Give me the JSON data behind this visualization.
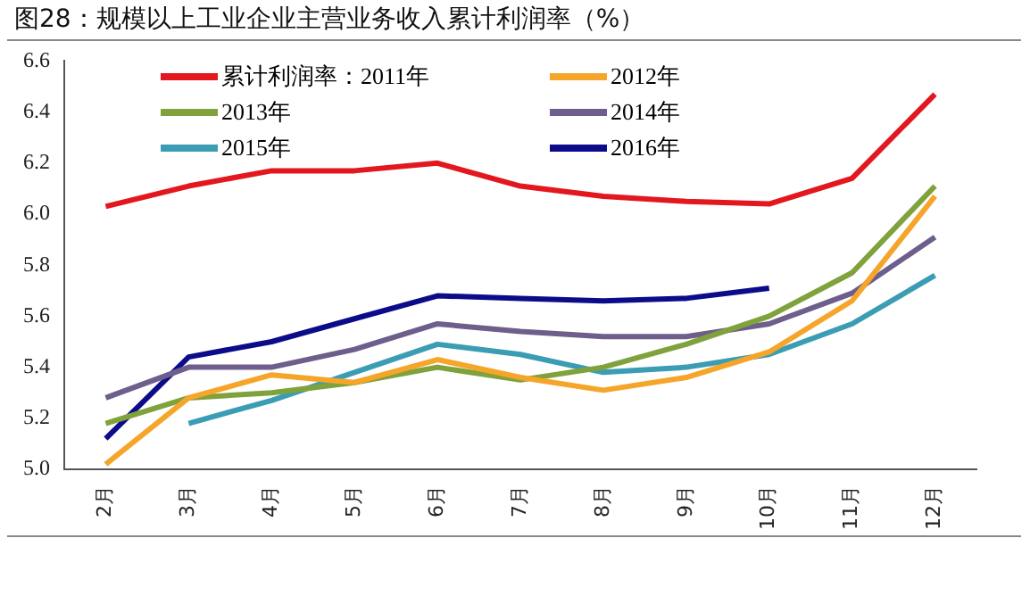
{
  "chart_data": {
    "type": "line",
    "title": "图28：规模以上工业企业主营业务收入累计利润率（%）",
    "categories": [
      "2月",
      "3月",
      "4月",
      "5月",
      "6月",
      "7月",
      "8月",
      "9月",
      "10月",
      "11月",
      "12月"
    ],
    "series": [
      {
        "name": "累计利润率：2011年",
        "color": "#e3171e",
        "values": [
          6.03,
          6.11,
          6.17,
          6.17,
          6.2,
          6.11,
          6.07,
          6.05,
          6.04,
          6.14,
          6.47
        ]
      },
      {
        "name": "2012年",
        "color": "#f5a52a",
        "values": [
          5.02,
          5.28,
          5.37,
          5.34,
          5.43,
          5.36,
          5.31,
          5.36,
          5.46,
          5.66,
          6.07
        ]
      },
      {
        "name": "2013年",
        "color": "#7fa23c",
        "values": [
          5.18,
          5.28,
          5.3,
          5.34,
          5.4,
          5.35,
          5.4,
          5.49,
          5.6,
          5.77,
          6.11
        ]
      },
      {
        "name": "2014年",
        "color": "#6e5e8c",
        "values": [
          5.28,
          5.4,
          5.4,
          5.47,
          5.57,
          5.54,
          5.52,
          5.52,
          5.57,
          5.69,
          5.91
        ]
      },
      {
        "name": "2015年",
        "color": "#3b9db3",
        "values": [
          null,
          5.18,
          5.27,
          5.38,
          5.49,
          5.45,
          5.38,
          5.4,
          5.45,
          5.57,
          5.76
        ]
      },
      {
        "name": "2016年",
        "color": "#0c0c8a",
        "values": [
          5.12,
          5.44,
          5.5,
          5.59,
          5.68,
          5.67,
          5.66,
          5.67,
          5.71,
          null,
          null
        ]
      }
    ],
    "ylim": [
      5.0,
      6.6
    ],
    "yticks": [
      {
        "value": 5,
        "label": "5.0"
      },
      {
        "value": 5.2,
        "label": "5.2"
      },
      {
        "value": 5.4,
        "label": "5.4"
      },
      {
        "value": 5.6,
        "label": "5.6"
      },
      {
        "value": 5.8,
        "label": "5.8"
      },
      {
        "value": 6,
        "label": "6.0"
      },
      {
        "value": 6.2,
        "label": "6.2"
      },
      {
        "value": 6.4,
        "label": "6.4"
      },
      {
        "value": 6.6,
        "label": "6.6"
      }
    ],
    "grid": false,
    "legend": "top",
    "marker": "none",
    "line_style": "solid"
  }
}
